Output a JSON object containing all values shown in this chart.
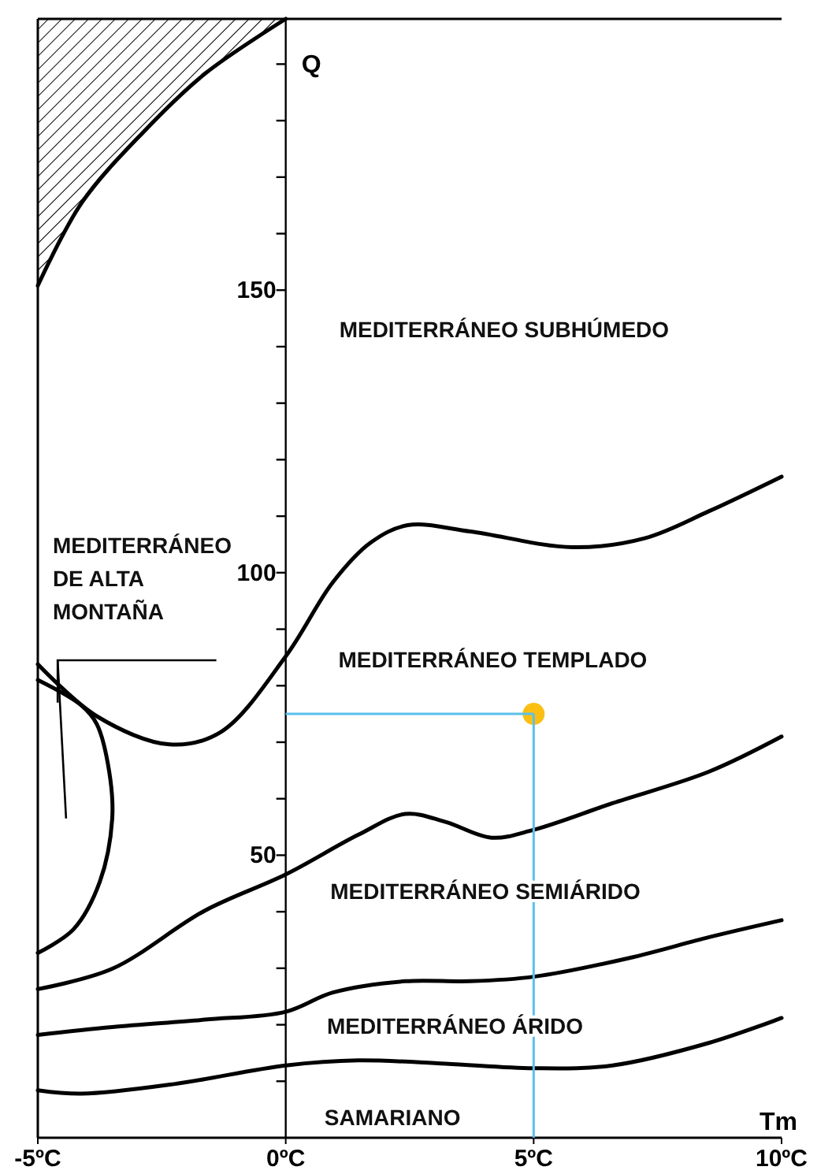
{
  "chart_data": {
    "type": "line",
    "xlabel": "Tm",
    "ylabel": "Q",
    "xlim": [
      -5,
      10
    ],
    "ylim": [
      0,
      198
    ],
    "xticks": [
      {
        "value": -5,
        "label": "-5ºC"
      },
      {
        "value": 0,
        "label": "0ºC"
      },
      {
        "value": 5,
        "label": "5ºC"
      },
      {
        "value": 10,
        "label": "10ºC"
      }
    ],
    "yticks": [
      {
        "value": 10,
        "label": null
      },
      {
        "value": 20,
        "label": null
      },
      {
        "value": 30,
        "label": null
      },
      {
        "value": 40,
        "label": null
      },
      50,
      {
        "value": 60,
        "label": null
      },
      {
        "value": 70,
        "label": null
      },
      {
        "value": 80,
        "label": null
      },
      {
        "value": 90,
        "label": null
      },
      100,
      {
        "value": 110,
        "label": null
      },
      {
        "value": 120,
        "label": null
      },
      {
        "value": 130,
        "label": null
      },
      {
        "value": 140,
        "label": null
      },
      150,
      {
        "value": 160,
        "label": null
      },
      {
        "value": 170,
        "label": null
      },
      {
        "value": 180,
        "label": null
      },
      {
        "value": 190,
        "label": null
      }
    ],
    "grid": false,
    "marker": "none",
    "line_style": "solid",
    "series": [
      {
        "color": "#000000",
        "x": [
          -5,
          -4.12,
          -2.88,
          -1.63,
          0
        ],
        "values": [
          150.8,
          165.4,
          177.9,
          188.3,
          198
        ]
      },
      {
        "color": "#000000",
        "x": [
          -5,
          -3.81,
          -2.34,
          -1.31,
          0,
          0.95,
          1.71,
          2.46,
          3.72,
          5.78,
          7.24,
          8.54,
          10
        ],
        "values": [
          83.8,
          74.6,
          69.6,
          71.8,
          85.2,
          98.3,
          105.3,
          108.4,
          107.3,
          104.5,
          106.1,
          110.9,
          117
        ]
      },
      {
        "color": "#000000",
        "x": [
          -5,
          -4.12,
          -3.81,
          -3.56,
          -3.5,
          -3.75,
          -4.28,
          -5
        ],
        "values": [
          81,
          76.5,
          73.2,
          64.8,
          56.4,
          45.3,
          36.9,
          32.7
        ]
      },
      {
        "color": "#000000",
        "x": [
          -5,
          -3.5,
          -1.63,
          0,
          1.46,
          2.41,
          3.22,
          4.15,
          5,
          6.59,
          8.54,
          10
        ],
        "values": [
          26.3,
          29.9,
          40.2,
          46.6,
          53.6,
          57.3,
          55.9,
          53.1,
          54.5,
          59.2,
          64.8,
          71
        ]
      },
      {
        "color": "#000000",
        "x": [
          -5,
          -3.5,
          -1.63,
          0,
          0.95,
          2.41,
          3.72,
          5,
          6.92,
          8.54,
          10
        ],
        "values": [
          18.2,
          19.6,
          20.9,
          22.3,
          25.7,
          27.7,
          27.7,
          28.5,
          31.8,
          35.5,
          38.5
        ]
      },
      {
        "color": "#000000",
        "x": [
          -5,
          -4.12,
          -2.25,
          0,
          1.46,
          3.22,
          5,
          6.59,
          8.54,
          10
        ],
        "values": [
          8.4,
          7.8,
          9.5,
          12.8,
          13.7,
          13.1,
          12.3,
          12.8,
          16.8,
          21.2
        ]
      },
      {
        "type": "scatter",
        "marker": "circle",
        "color": "#fbbf14",
        "x": [
          5
        ],
        "values": [
          75
        ]
      }
    ],
    "ref_lines": [
      {
        "axis": "x",
        "value": 5,
        "color": "#5bc0eb"
      },
      {
        "axis": "y",
        "value": 75,
        "color": "#5bc0eb"
      }
    ],
    "annotations": [
      "MEDITERRÁNEO SUBHÚMEDO",
      "MEDITERRÁNEO TEMPLADO",
      "MEDITERRÁNEO SEMIÁRIDO",
      "MEDITERRÁNEO ÁRIDO",
      "SAMARIANO",
      "MEDITERRÁNEO\nDE ALTA\nMONTAÑA"
    ]
  }
}
